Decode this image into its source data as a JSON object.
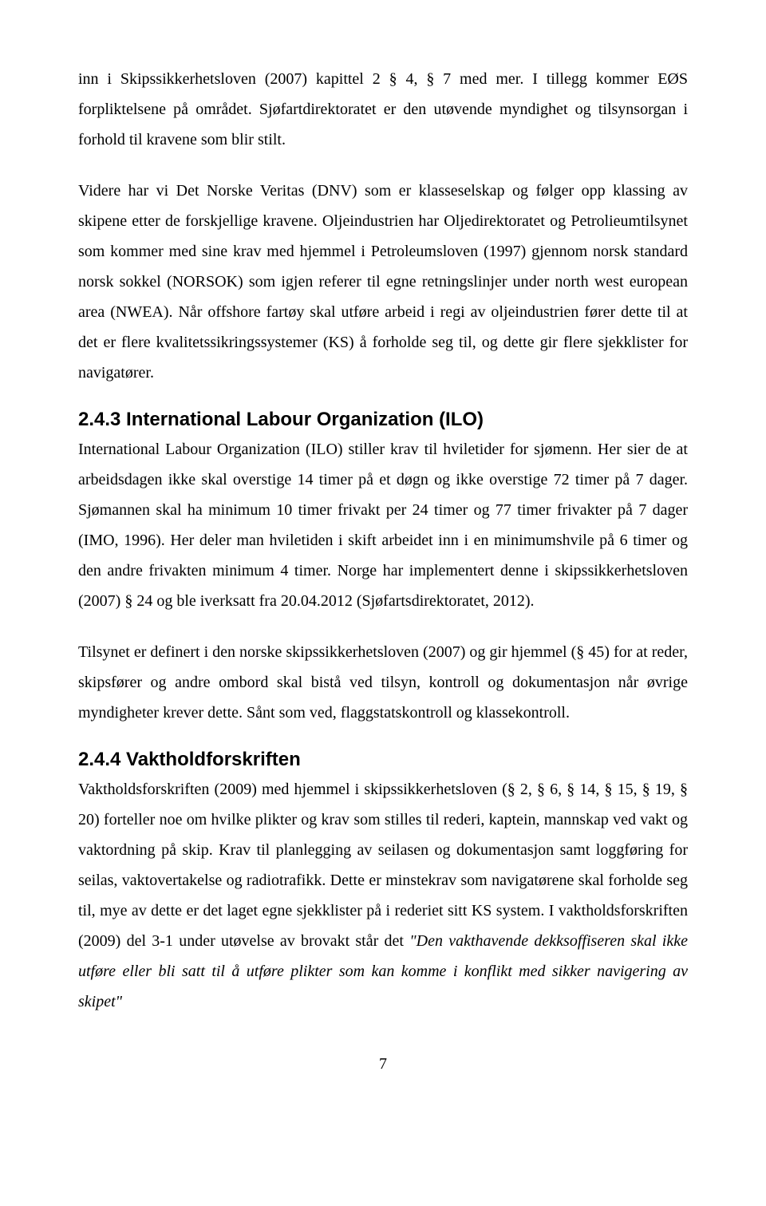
{
  "paragraphs": {
    "p1": "inn i Skipssikkerhetsloven (2007) kapittel 2 § 4, § 7 med mer. I tillegg kommer EØS forpliktelsene på området. Sjøfartdirektoratet er den utøvende myndighet og tilsynsorgan i forhold til kravene som blir stilt.",
    "p2": "Videre har vi Det Norske Veritas (DNV) som er klasseselskap og følger opp klassing av skipene etter de forskjellige kravene. Oljeindustrien har Oljedirektoratet og Petrolieumtilsynet som kommer med sine krav med hjemmel i Petroleumsloven (1997) gjennom norsk standard norsk sokkel (NORSOK) som igjen referer til egne retningslinjer under north west european area (NWEA). Når offshore fartøy skal utføre arbeid i regi av oljeindustrien fører dette til at det er flere kvalitetssikringssystemer (KS) å forholde seg til, og dette gir flere sjekklister for navigatører.",
    "p3": "International Labour Organization (ILO) stiller krav til hviletider for sjømenn. Her sier de at arbeidsdagen ikke skal overstige 14 timer på et døgn og ikke overstige 72 timer på 7 dager. Sjømannen skal ha minimum 10 timer frivakt per 24 timer og 77 timer frivakter på 7 dager (IMO, 1996). Her deler man hviletiden i skift arbeidet inn i en minimumshvile på 6 timer og den andre frivakten minimum 4 timer. Norge har implementert denne i skipssikkerhetsloven (2007) § 24 og ble iverksatt fra 20.04.2012 (Sjøfartsdirektoratet, 2012).",
    "p4": "Tilsynet er definert i den norske skipssikkerhetsloven (2007) og gir hjemmel (§ 45) for at reder, skipsfører og andre ombord skal bistå ved tilsyn, kontroll og dokumentasjon når øvrige myndigheter krever dette. Sånt som ved, flaggstatskontroll og klassekontroll.",
    "p5a": "Vaktholdsforskriften (2009) med hjemmel i skipssikkerhetsloven (§ 2, § 6, § 14, § 15, § 19, § 20) forteller noe om hvilke plikter og krav som stilles til rederi, kaptein, mannskap ved vakt og vaktordning på skip. Krav til planlegging av seilasen og dokumentasjon samt loggføring for seilas, vaktovertakelse og radiotrafikk. Dette er minstekrav som navigatørene skal forholde seg til, mye av dette er det laget egne sjekklister på i rederiet sitt KS system. I vaktholdsforskriften (2009) del 3-1 under utøvelse av brovakt står det ",
    "p5quote": "\"Den vakthavende dekksoffiseren skal ikke utføre eller bli satt til å utføre plikter som kan komme i konflikt med sikker navigering av skipet\""
  },
  "headings": {
    "h1": "2.4.3 International Labour Organization (ILO)",
    "h2": "2.4.4 Vaktholdforskriften"
  },
  "pageNumber": "7"
}
